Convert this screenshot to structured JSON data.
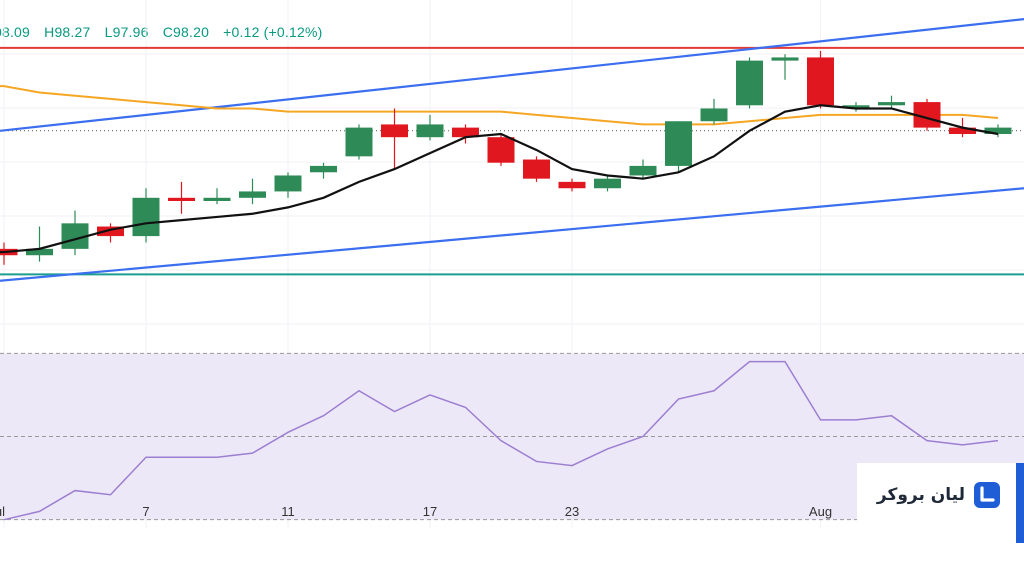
{
  "ohlc": {
    "open": "08.09",
    "high": "H98.27",
    "low": "L97.96",
    "close": "C98.20",
    "change": "+0.12 (+0.12%)"
  },
  "brand": {
    "name": "لیان بروکر",
    "logo_icon": "broker-logo-icon",
    "accent": "#1f5dd6"
  },
  "colors": {
    "up": "#2e8b57",
    "down": "#e0171f",
    "ma_fast": "#111111",
    "ma_slow": "#f5a623",
    "channel": "#3b6ff0",
    "resistance": "#e53935",
    "support": "#1a9e8f",
    "rsi": "#9c7fd1",
    "rsi_band": "#ede8f7"
  },
  "chart_data": [
    {
      "type": "candlestick",
      "x_labels": [
        "ul",
        "7",
        "11",
        "17",
        "23",
        "Aug"
      ],
      "candles": [
        {
          "o": 97.6,
          "h": 97.64,
          "l": 97.57,
          "c": 97.62,
          "dir": "down"
        },
        {
          "o": 97.6,
          "h": 97.69,
          "l": 97.58,
          "c": 97.62,
          "dir": "up"
        },
        {
          "o": 97.62,
          "h": 97.74,
          "l": 97.6,
          "c": 97.7,
          "dir": "up"
        },
        {
          "o": 97.69,
          "h": 97.7,
          "l": 97.64,
          "c": 97.66,
          "dir": "down"
        },
        {
          "o": 97.66,
          "h": 97.81,
          "l": 97.64,
          "c": 97.78,
          "dir": "up"
        },
        {
          "o": 97.78,
          "h": 97.83,
          "l": 97.73,
          "c": 97.77,
          "dir": "down"
        },
        {
          "o": 97.77,
          "h": 97.81,
          "l": 97.76,
          "c": 97.78,
          "dir": "up"
        },
        {
          "o": 97.78,
          "h": 97.84,
          "l": 97.76,
          "c": 97.8,
          "dir": "up"
        },
        {
          "o": 97.8,
          "h": 97.86,
          "l": 97.78,
          "c": 97.85,
          "dir": "up"
        },
        {
          "o": 97.86,
          "h": 97.89,
          "l": 97.84,
          "c": 97.88,
          "dir": "up"
        },
        {
          "o": 97.91,
          "h": 98.01,
          "l": 97.9,
          "c": 98.0,
          "dir": "up"
        },
        {
          "o": 98.01,
          "h": 98.06,
          "l": 97.87,
          "c": 97.97,
          "dir": "down"
        },
        {
          "o": 97.97,
          "h": 98.04,
          "l": 97.96,
          "c": 98.01,
          "dir": "up"
        },
        {
          "o": 98.0,
          "h": 98.01,
          "l": 97.95,
          "c": 97.97,
          "dir": "down"
        },
        {
          "o": 97.97,
          "h": 97.98,
          "l": 97.88,
          "c": 97.89,
          "dir": "down"
        },
        {
          "o": 97.9,
          "h": 97.91,
          "l": 97.83,
          "c": 97.84,
          "dir": "down"
        },
        {
          "o": 97.83,
          "h": 97.84,
          "l": 97.8,
          "c": 97.81,
          "dir": "down"
        },
        {
          "o": 97.81,
          "h": 97.85,
          "l": 97.8,
          "c": 97.84,
          "dir": "up"
        },
        {
          "o": 97.85,
          "h": 97.9,
          "l": 97.84,
          "c": 97.88,
          "dir": "up"
        },
        {
          "o": 97.88,
          "h": 98.02,
          "l": 97.86,
          "c": 98.02,
          "dir": "up"
        },
        {
          "o": 98.02,
          "h": 98.09,
          "l": 98.01,
          "c": 98.06,
          "dir": "up"
        },
        {
          "o": 98.07,
          "h": 98.22,
          "l": 98.06,
          "c": 98.21,
          "dir": "up"
        },
        {
          "o": 98.21,
          "h": 98.23,
          "l": 98.15,
          "c": 98.22,
          "dir": "up"
        },
        {
          "o": 98.22,
          "h": 98.24,
          "l": 98.06,
          "c": 98.07,
          "dir": "down"
        },
        {
          "o": 98.06,
          "h": 98.08,
          "l": 98.05,
          "c": 98.07,
          "dir": "up"
        },
        {
          "o": 98.07,
          "h": 98.1,
          "l": 98.06,
          "c": 98.08,
          "dir": "up"
        },
        {
          "o": 98.08,
          "h": 98.09,
          "l": 97.99,
          "c": 98.0,
          "dir": "down"
        },
        {
          "o": 98.0,
          "h": 98.03,
          "l": 97.97,
          "c": 97.98,
          "dir": "down"
        },
        {
          "o": 97.98,
          "h": 98.01,
          "l": 97.97,
          "c": 98.0,
          "dir": "up"
        }
      ],
      "ma_fast": [
        97.61,
        97.62,
        97.65,
        97.68,
        97.7,
        97.71,
        97.72,
        97.73,
        97.75,
        97.78,
        97.83,
        97.87,
        97.92,
        97.97,
        97.98,
        97.93,
        97.87,
        97.85,
        97.84,
        97.86,
        97.91,
        97.99,
        98.05,
        98.07,
        98.06,
        98.06,
        98.03,
        98.0,
        97.98
      ],
      "ma_slow": [
        98.13,
        98.11,
        98.1,
        98.09,
        98.08,
        98.07,
        98.06,
        98.06,
        98.05,
        98.05,
        98.05,
        98.05,
        98.05,
        98.05,
        98.05,
        98.04,
        98.03,
        98.02,
        98.01,
        98.01,
        98.01,
        98.02,
        98.03,
        98.04,
        98.04,
        98.04,
        98.04,
        98.04,
        98.03
      ],
      "channel_upper": {
        "start": 97.99,
        "end": 98.34
      },
      "channel_lower": {
        "start": 97.52,
        "end": 97.81
      },
      "resistance": 98.25,
      "support": 97.54,
      "dotted_level": 97.99,
      "y_range": [
        97.35,
        98.4
      ]
    },
    {
      "type": "line",
      "name": "RSI",
      "values": [
        30,
        32,
        37,
        36,
        45,
        45,
        45,
        46,
        51,
        55,
        61,
        56,
        60,
        57,
        49,
        44,
        43,
        47,
        50,
        59,
        61,
        68,
        68,
        54,
        54,
        55,
        49,
        48,
        49
      ],
      "band": [
        30,
        70
      ],
      "mid": 50,
      "y_range": [
        28,
        72
      ]
    }
  ]
}
